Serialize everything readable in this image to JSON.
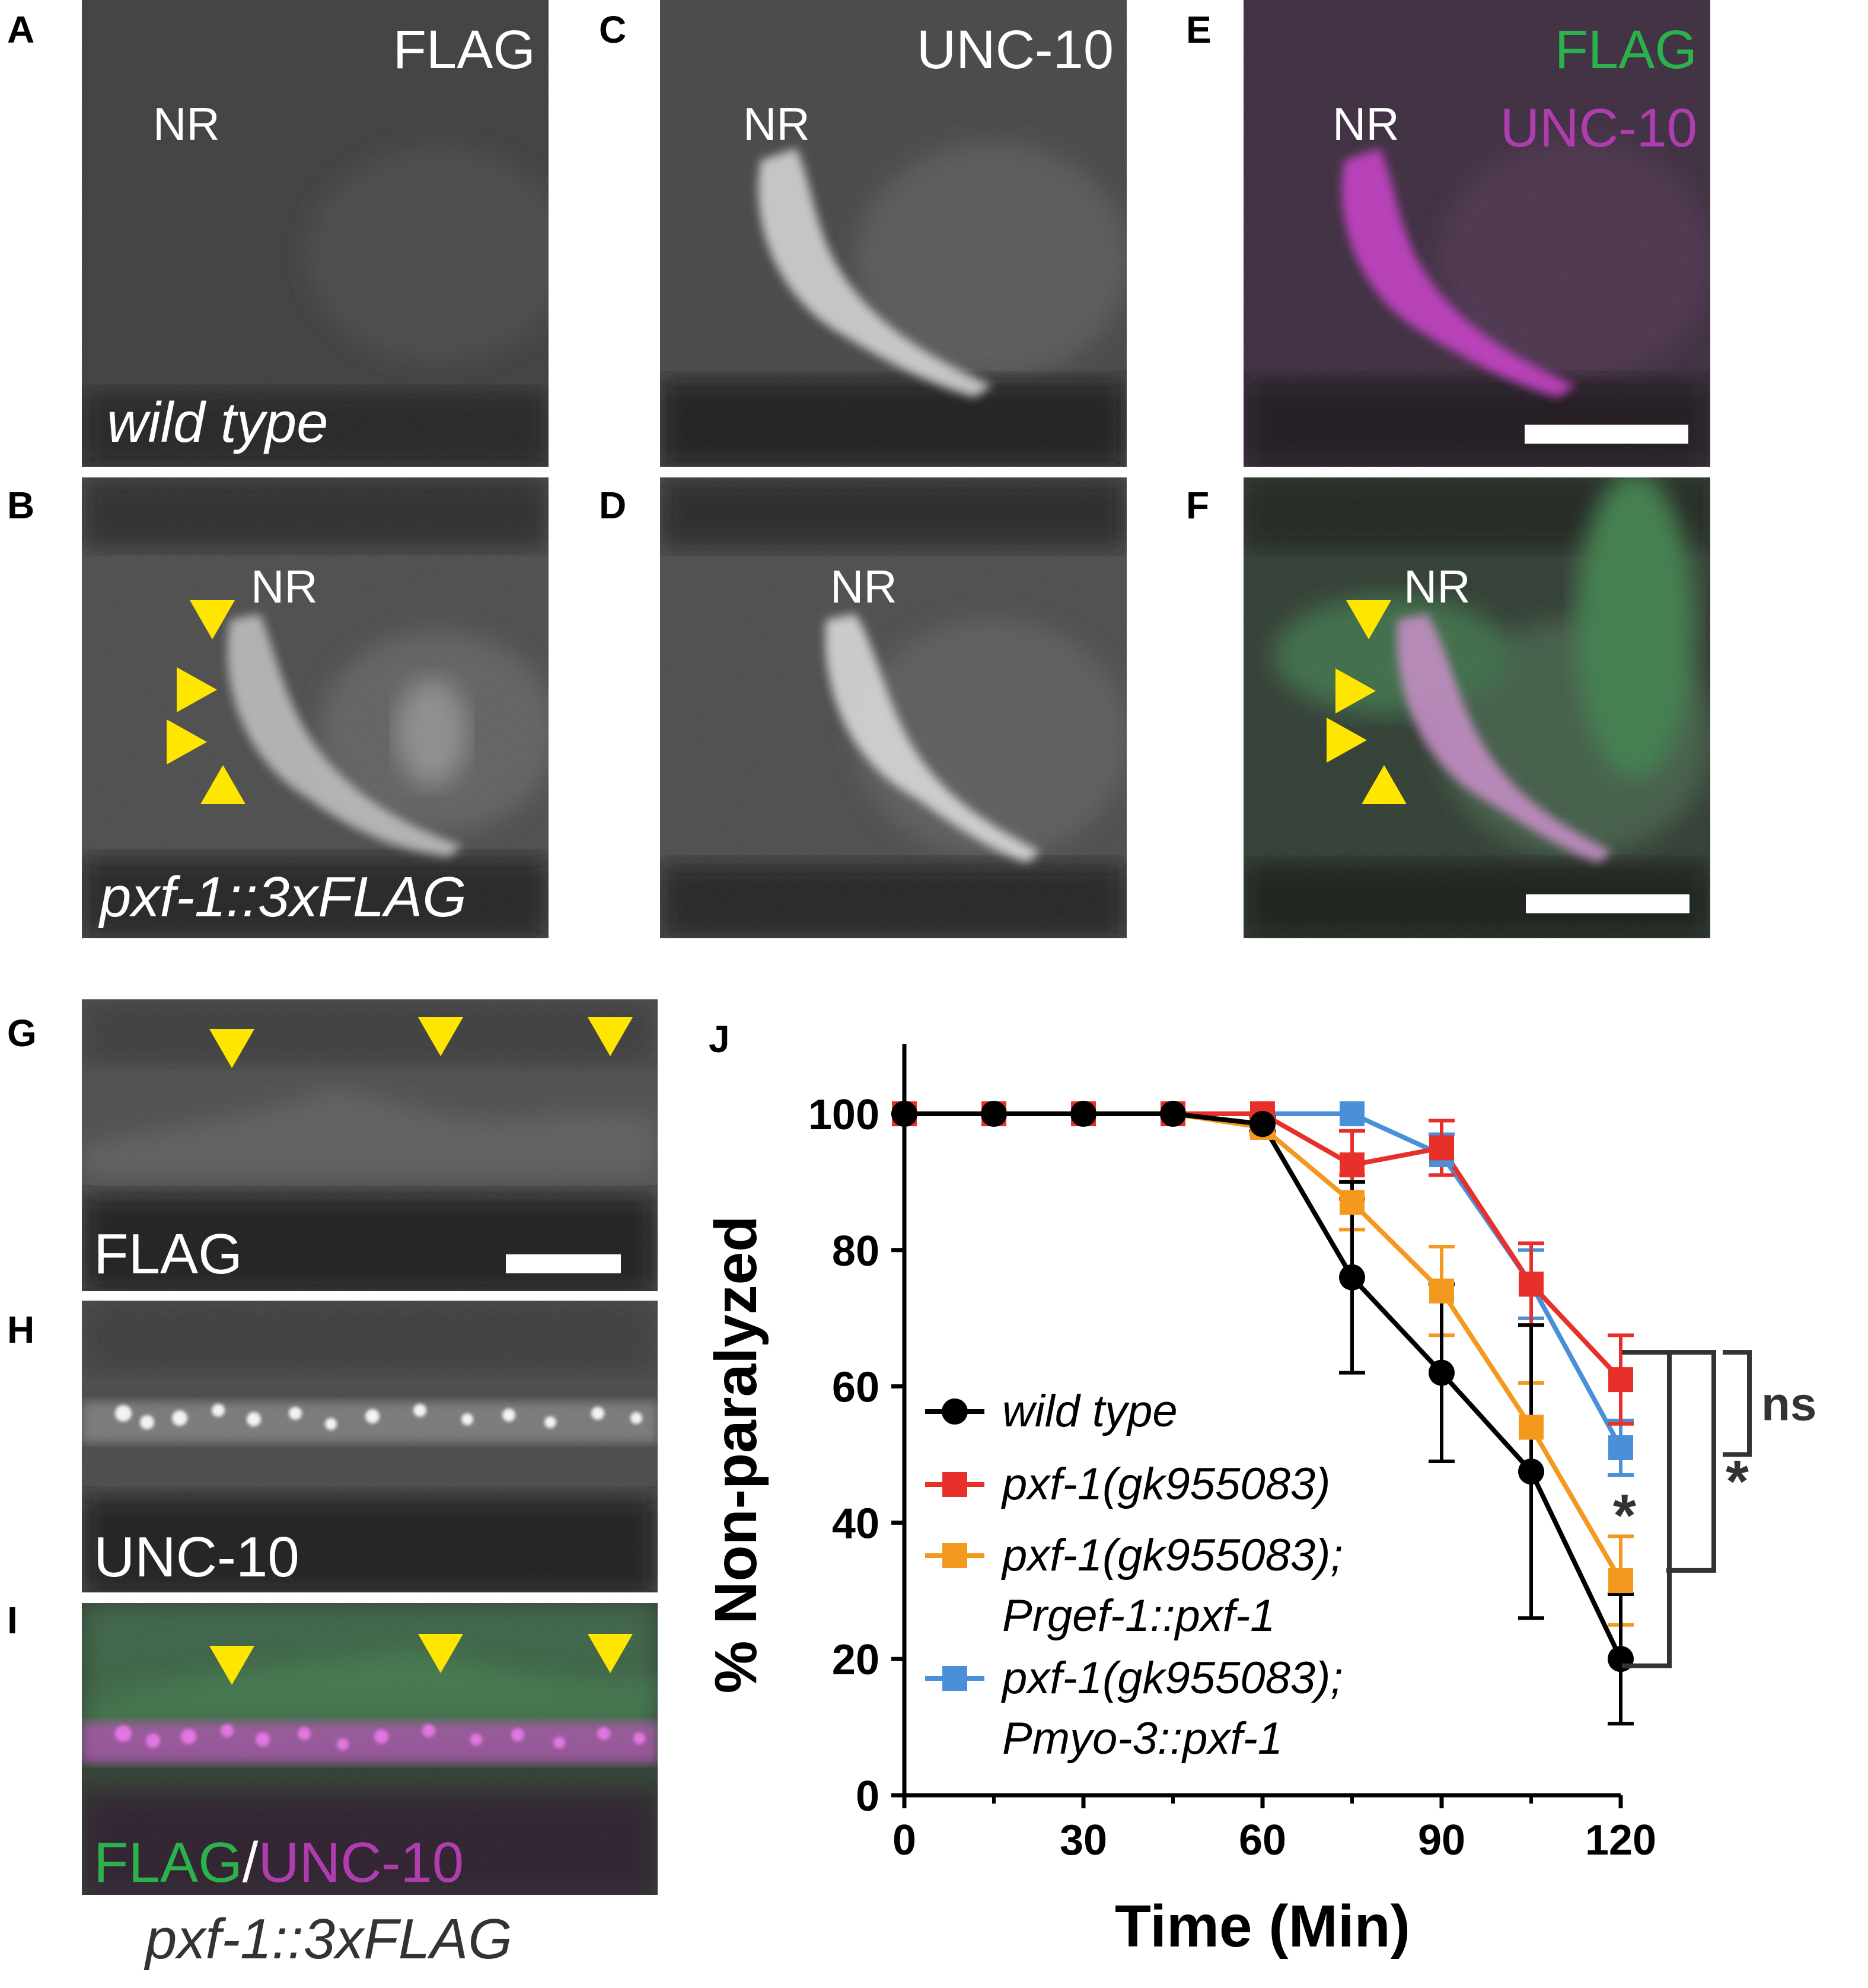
{
  "panel_letters": {
    "a": "A",
    "b": "B",
    "c": "C",
    "d": "D",
    "e": "E",
    "f": "F",
    "g": "G",
    "h": "H",
    "i": "I",
    "j": "J"
  },
  "panels": {
    "a": {
      "channel": "FLAG",
      "region": "NR",
      "genotype": "wild type"
    },
    "b": {
      "region": "NR",
      "genotype": "pxf-1::3xFLAG"
    },
    "c": {
      "channel": "UNC-10",
      "region": "NR"
    },
    "d": {
      "region": "NR"
    },
    "e": {
      "channel_green": "FLAG",
      "channel_magenta": "UNC-10",
      "region": "NR"
    },
    "f": {
      "region": "NR"
    },
    "g": {
      "channel": "FLAG"
    },
    "h": {
      "channel": "UNC-10"
    },
    "i": {
      "channel_green": "FLAG",
      "separator": "/",
      "channel_magenta": "UNC-10"
    }
  },
  "bottom_caption": "pxf-1::3xFLAG",
  "colors": {
    "green": "#2bb24c",
    "magenta": "#b03db0",
    "arrow": "#ffe600",
    "wild_type": "#000000",
    "mutant": "#e8302a",
    "rescue_neuronal": "#f39a1e",
    "rescue_muscle": "#4a90d9"
  },
  "chart_data": {
    "type": "line",
    "xlabel": "Time (Min)",
    "ylabel": "% Non-paralyzed",
    "xlim": [
      0,
      120
    ],
    "ylim": [
      0,
      100
    ],
    "xticks": [
      "0",
      "30",
      "60",
      "90",
      "120"
    ],
    "yticks": [
      "0",
      "20",
      "40",
      "60",
      "80",
      "100"
    ],
    "series": [
      {
        "name": "wild type",
        "color": "#000000",
        "marker": "circle",
        "x": [
          0,
          15,
          30,
          45,
          60,
          75,
          90,
          105,
          120
        ],
        "y": [
          100,
          100,
          100,
          100,
          98.5,
          76,
          62,
          47.5,
          20
        ],
        "err": [
          0,
          0,
          0,
          0,
          1,
          14,
          13,
          21.5,
          9.5
        ]
      },
      {
        "name": "pxf-1(gk955083)",
        "color": "#e8302a",
        "marker": "square",
        "x": [
          0,
          15,
          30,
          45,
          60,
          75,
          90,
          105,
          120
        ],
        "y": [
          100,
          100,
          100,
          100,
          100,
          92.5,
          95,
          75,
          61
        ],
        "err": [
          0,
          0,
          0,
          0,
          0,
          5,
          4,
          6,
          6.5
        ]
      },
      {
        "name": "pxf-1(gk955083);",
        "name_line2": "Prgef-1::pxf-1",
        "color": "#f39a1e",
        "marker": "square",
        "x": [
          0,
          15,
          30,
          45,
          60,
          75,
          90,
          105,
          120
        ],
        "y": [
          100,
          100,
          100,
          100,
          98,
          87,
          74,
          54,
          31.5
        ],
        "err": [
          0,
          0,
          0,
          0,
          1,
          4,
          6.5,
          6.5,
          6.5
        ]
      },
      {
        "name": "pxf-1(gk955083);",
        "name_line2": "Pmyo-3::pxf-1",
        "color": "#4a90d9",
        "marker": "square",
        "x": [
          0,
          15,
          30,
          45,
          60,
          75,
          90,
          105,
          120
        ],
        "y": [
          100,
          100,
          100,
          100,
          100,
          100,
          94,
          75,
          51
        ],
        "err": [
          0,
          0,
          0,
          0,
          0,
          0,
          3,
          5,
          4
        ]
      }
    ],
    "significance": [
      {
        "label": "ns",
        "from": "pxf-1(gk955083)",
        "to": "pxf-1(gk955083); Pmyo-3::pxf-1"
      },
      {
        "label": "*",
        "from": "pxf-1(gk955083)",
        "to": "pxf-1(gk955083); Prgef-1::pxf-1"
      },
      {
        "label": "*",
        "from": "pxf-1(gk955083)",
        "to": "wild type"
      }
    ],
    "legend_placement": "lower-left"
  }
}
